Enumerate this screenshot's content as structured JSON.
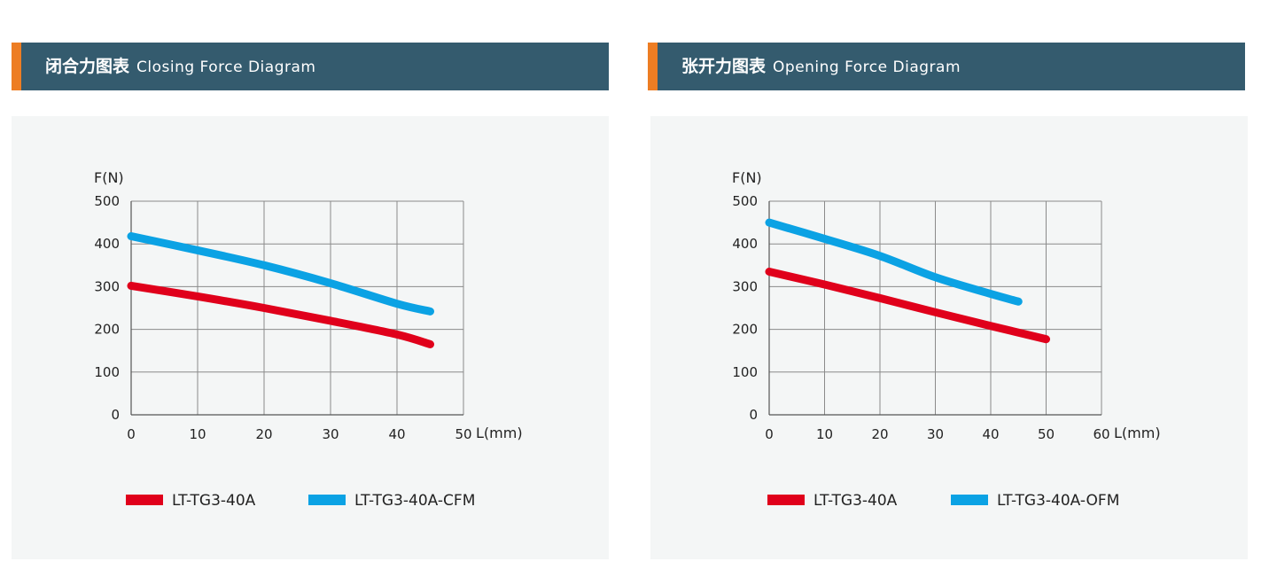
{
  "panels": [
    {
      "title_cn": "闭合力图表",
      "title_en": "Closing Force Diagram"
    },
    {
      "title_cn": "张开力图表",
      "title_en": "Opening Force Diagram"
    }
  ],
  "colors": {
    "header": "#345b6e",
    "accent": "#ed7d23",
    "red": "#e0001b",
    "blue": "#0ba2e4"
  },
  "chart_data": [
    {
      "type": "line",
      "ylabel": "F(N)",
      "xlabel": "L(mm)",
      "xlim": [
        0,
        50
      ],
      "ylim": [
        0,
        500
      ],
      "xticks": [
        0,
        10,
        20,
        30,
        40,
        50
      ],
      "yticks": [
        0,
        100,
        200,
        300,
        400,
        500
      ],
      "grid": true,
      "legend_position": "bottom",
      "series": [
        {
          "name": "LT-TG3-40A",
          "color": "#e0001b",
          "x": [
            0,
            10,
            20,
            30,
            40,
            45
          ],
          "y": [
            302,
            277,
            250,
            220,
            188,
            165
          ]
        },
        {
          "name": "LT-TG3-40A-CFM",
          "color": "#0ba2e4",
          "x": [
            0,
            10,
            20,
            30,
            40,
            45
          ],
          "y": [
            418,
            385,
            350,
            308,
            260,
            242
          ]
        }
      ]
    },
    {
      "type": "line",
      "ylabel": "F(N)",
      "xlabel": "L(mm)",
      "xlim": [
        0,
        60
      ],
      "ylim": [
        0,
        500
      ],
      "xticks": [
        0,
        10,
        20,
        30,
        40,
        50,
        60
      ],
      "yticks": [
        0,
        100,
        200,
        300,
        400,
        500
      ],
      "grid": true,
      "legend_position": "bottom",
      "series": [
        {
          "name": "LT-TG3-40A",
          "color": "#e0001b",
          "x": [
            0,
            10,
            20,
            30,
            40,
            50
          ],
          "y": [
            335,
            305,
            273,
            240,
            208,
            177
          ]
        },
        {
          "name": "LT-TG3-40A-OFM",
          "color": "#0ba2e4",
          "x": [
            0,
            10,
            20,
            30,
            40,
            45
          ],
          "y": [
            450,
            412,
            372,
            322,
            283,
            265
          ]
        }
      ]
    }
  ]
}
